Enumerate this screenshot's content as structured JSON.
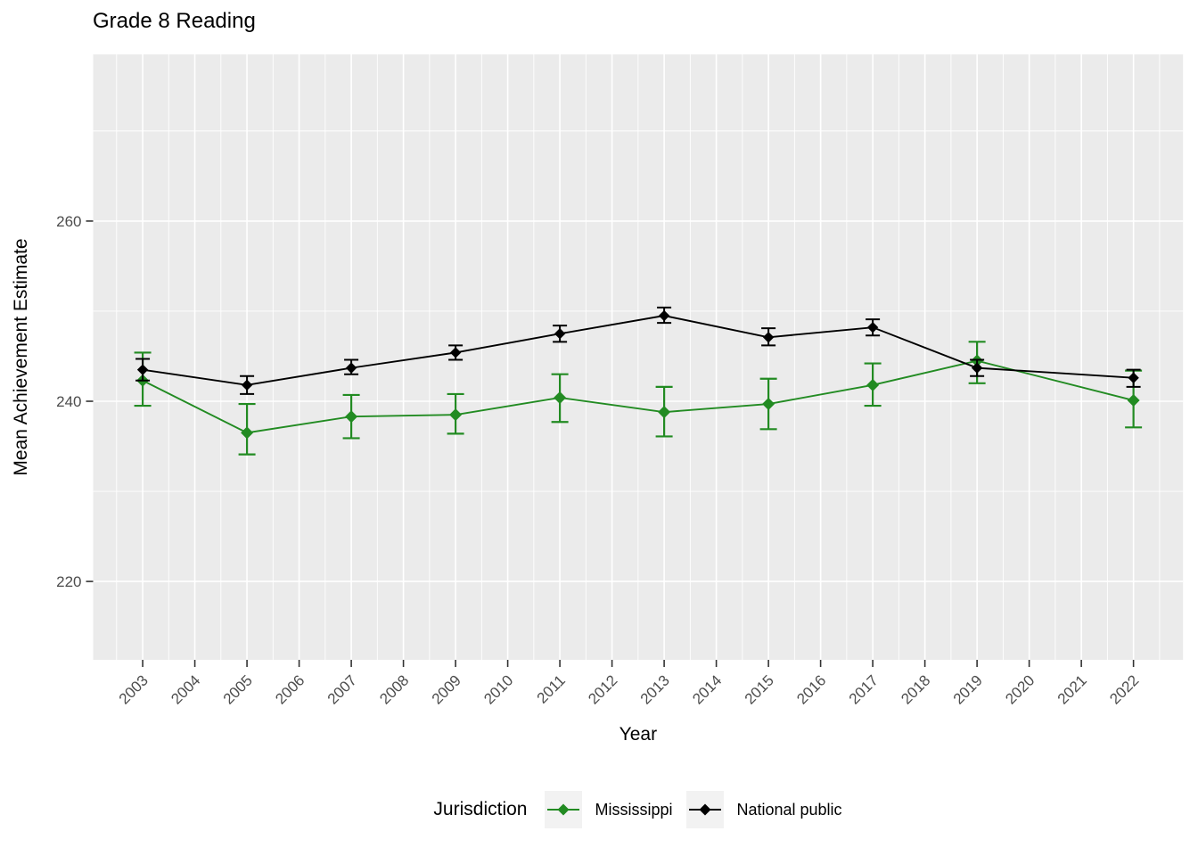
{
  "chart_data": {
    "type": "line",
    "title": "Grade 8 Reading",
    "xlabel": "Year",
    "ylabel": "Mean Achievement Estimate",
    "legend_title": "Jurisdiction",
    "legend_position": "bottom",
    "grid": true,
    "panel_bg": "#EBEBEB",
    "grid_color": "#FFFFFF",
    "tick_label_color": "#4D4D4D",
    "axis_tick_color": "#333333",
    "legend_key_bg": "#F2F2F2",
    "marker": "diamond",
    "xlim": [
      2002.05,
      2022.95
    ],
    "ylim": [
      211.3,
      278.5
    ],
    "x_ticks": [
      2003,
      2004,
      2005,
      2006,
      2007,
      2008,
      2009,
      2010,
      2011,
      2012,
      2013,
      2014,
      2015,
      2016,
      2017,
      2018,
      2019,
      2020,
      2021,
      2022
    ],
    "x_minor_ticks": [
      2002.5,
      2003.5,
      2004.5,
      2005.5,
      2006.5,
      2007.5,
      2008.5,
      2009.5,
      2010.5,
      2011.5,
      2012.5,
      2013.5,
      2014.5,
      2015.5,
      2016.5,
      2017.5,
      2018.5,
      2019.5,
      2020.5,
      2021.5,
      2022.5
    ],
    "y_ticks": [
      220,
      240,
      260
    ],
    "y_minor_ticks": [
      230,
      250,
      270
    ],
    "x": [
      2003,
      2005,
      2007,
      2009,
      2011,
      2013,
      2015,
      2017,
      2019,
      2022
    ],
    "series": [
      {
        "name": "Mississippi",
        "color": "#228B22",
        "values": [
          242.3,
          236.5,
          238.3,
          238.5,
          240.4,
          238.8,
          239.7,
          241.8,
          244.5,
          240.1
        ],
        "err_low": [
          239.5,
          234.1,
          235.9,
          236.4,
          237.7,
          236.1,
          236.9,
          239.5,
          242.0,
          237.1
        ],
        "err_high": [
          245.4,
          239.7,
          240.7,
          240.8,
          243.0,
          241.6,
          242.5,
          244.2,
          246.6,
          243.4
        ]
      },
      {
        "name": "National public",
        "color": "#000000",
        "values": [
          243.5,
          241.8,
          243.7,
          245.4,
          247.5,
          249.5,
          247.1,
          248.2,
          243.7,
          242.6
        ],
        "err_low": [
          242.3,
          240.8,
          243.0,
          244.6,
          246.6,
          248.7,
          246.2,
          247.3,
          242.8,
          241.6
        ],
        "err_high": [
          244.7,
          242.8,
          244.6,
          246.2,
          248.4,
          250.4,
          248.1,
          249.1,
          244.6,
          243.5
        ]
      }
    ]
  }
}
